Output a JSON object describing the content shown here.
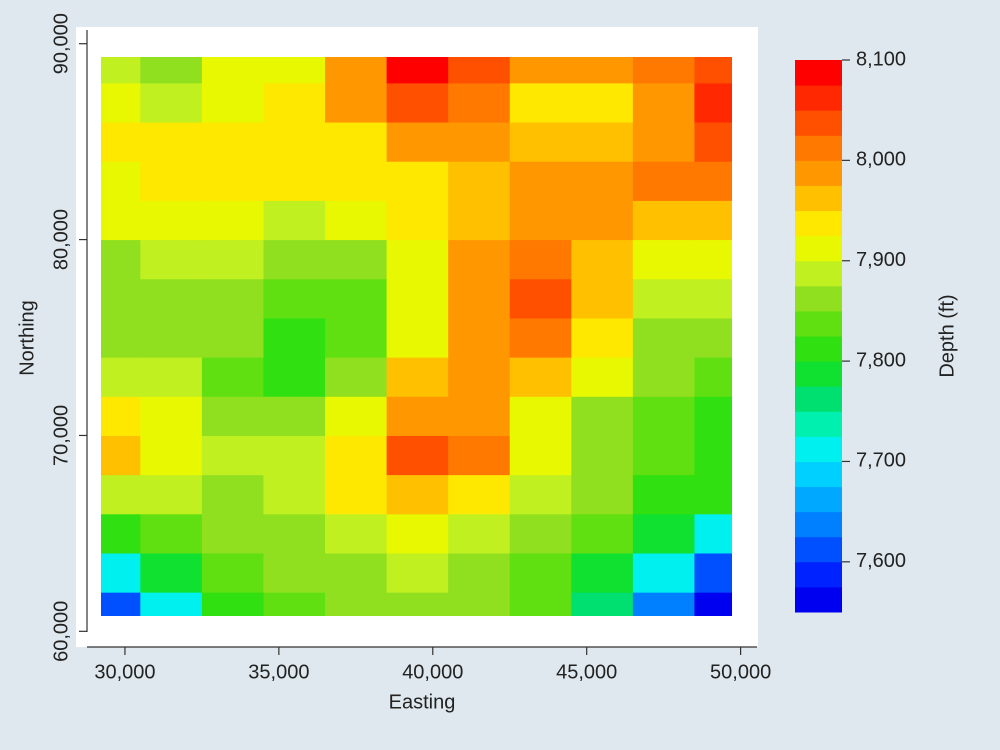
{
  "chart_data": {
    "type": "contour",
    "x_label": "Easting",
    "y_label": "Northing",
    "colorbar_label": "Depth (ft)",
    "xlim": [
      28800,
      50500
    ],
    "ylim": [
      59200,
      90700
    ],
    "xticks": [
      {
        "value": 30000,
        "label": "30,000"
      },
      {
        "value": 35000,
        "label": "35,000"
      },
      {
        "value": 40000,
        "label": "40,000"
      },
      {
        "value": 45000,
        "label": "45,000"
      },
      {
        "value": 50000,
        "label": "50,000"
      }
    ],
    "yticks": [
      {
        "value": 60000,
        "label": "60,000"
      },
      {
        "value": 70000,
        "label": "70,000"
      },
      {
        "value": 80000,
        "label": "80,000"
      },
      {
        "value": 90000,
        "label": "90,000"
      }
    ],
    "x": [
      29500,
      31500,
      33500,
      35500,
      37500,
      39500,
      41500,
      43500,
      45500,
      47500,
      49500
    ],
    "y": [
      61000,
      63000,
      65000,
      67000,
      69000,
      71000,
      73000,
      75000,
      77000,
      79000,
      81000,
      83000,
      85000,
      87000,
      89000
    ],
    "z": [
      [
        7600,
        7700,
        7800,
        7840,
        7860,
        7870,
        7860,
        7830,
        7760,
        7640,
        7560
      ],
      [
        7720,
        7780,
        7830,
        7850,
        7870,
        7880,
        7870,
        7840,
        7790,
        7700,
        7620
      ],
      [
        7820,
        7840,
        7850,
        7860,
        7880,
        7900,
        7890,
        7860,
        7830,
        7780,
        7700
      ],
      [
        7880,
        7880,
        7870,
        7880,
        7930,
        7960,
        7940,
        7890,
        7850,
        7820,
        7800
      ],
      [
        7970,
        7920,
        7890,
        7880,
        7940,
        8030,
        8010,
        7910,
        7860,
        7830,
        7810
      ],
      [
        7930,
        7910,
        7870,
        7860,
        7900,
        7990,
        7985,
        7920,
        7870,
        7840,
        7820
      ],
      [
        7890,
        7880,
        7840,
        7820,
        7860,
        7950,
        7980,
        7950,
        7900,
        7850,
        7840
      ],
      [
        7860,
        7870,
        7850,
        7820,
        7830,
        7915,
        7985,
        8000,
        7930,
        7870,
        7860
      ],
      [
        7850,
        7870,
        7870,
        7840,
        7830,
        7900,
        7985,
        8040,
        7960,
        7890,
        7880
      ],
      [
        7870,
        7880,
        7890,
        7860,
        7870,
        7920,
        7975,
        8000,
        7950,
        7920,
        7915
      ],
      [
        7910,
        7905,
        7900,
        7890,
        7910,
        7935,
        7970,
        7990,
        7975,
        7960,
        7950
      ],
      [
        7920,
        7925,
        7925,
        7925,
        7930,
        7945,
        7960,
        7985,
        7990,
        8000,
        8010
      ],
      [
        7925,
        7925,
        7925,
        7925,
        7945,
        7980,
        7975,
        7955,
        7965,
        7995,
        8040
      ],
      [
        7900,
        7895,
        7910,
        7925,
        7990,
        8040,
        8010,
        7940,
        7945,
        7990,
        8050
      ],
      [
        7880,
        7870,
        7900,
        7920,
        7975,
        8080,
        8030,
        7990,
        7985,
        8000,
        8040
      ]
    ],
    "levels": [
      7550,
      7575,
      7600,
      7625,
      7650,
      7675,
      7700,
      7725,
      7750,
      7775,
      7800,
      7825,
      7850,
      7875,
      7900,
      7925,
      7950,
      7975,
      8000,
      8025,
      8050,
      8075,
      8100
    ],
    "colors": [
      "#0000f0",
      "#0022ff",
      "#0050ff",
      "#0080ff",
      "#00a8ff",
      "#00d0ff",
      "#00f0f0",
      "#00f0b0",
      "#00e070",
      "#10e030",
      "#30e010",
      "#60e010",
      "#90e020",
      "#c0f020",
      "#e8f800",
      "#ffe800",
      "#ffc000",
      "#ff9800",
      "#ff7800",
      "#ff5000",
      "#ff2800",
      "#ff0000"
    ],
    "colorbar_lim": [
      7550,
      8100
    ],
    "colorbar_ticks": [
      {
        "value": 7600,
        "label": "7,600"
      },
      {
        "value": 7700,
        "label": "7,700"
      },
      {
        "value": 7800,
        "label": "7,800"
      },
      {
        "value": 7900,
        "label": "7,900"
      },
      {
        "value": 8000,
        "label": "8,000"
      },
      {
        "value": 8100,
        "label": "8,100"
      }
    ]
  }
}
